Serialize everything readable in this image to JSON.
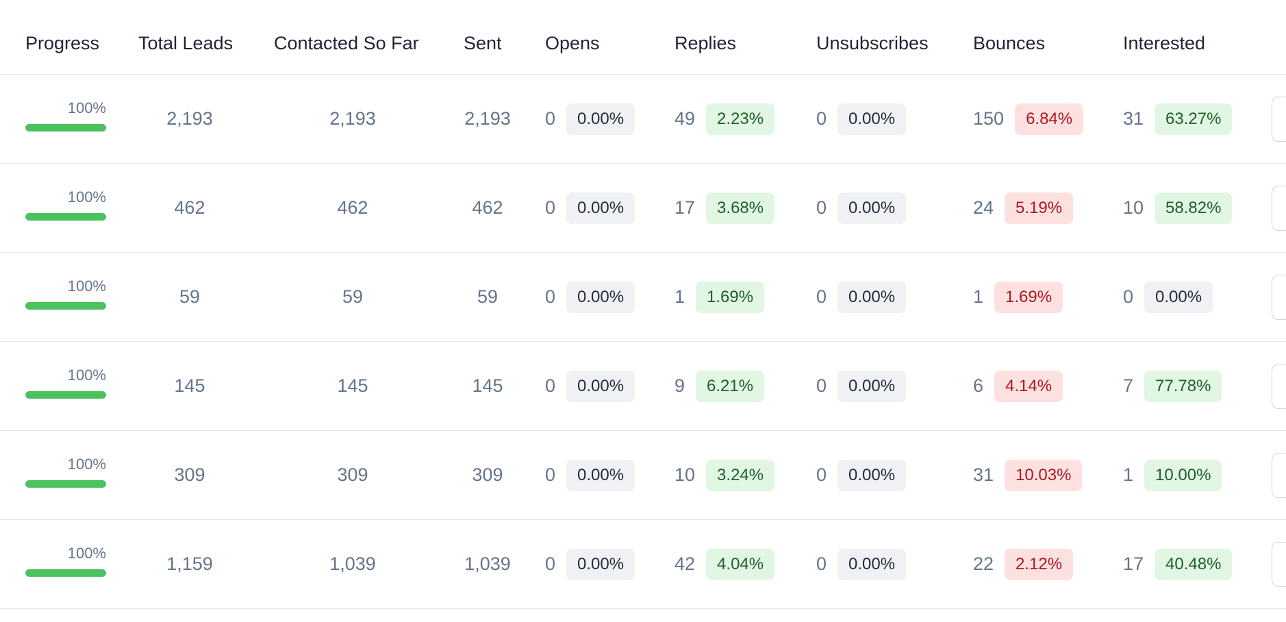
{
  "headers": {
    "progress": "Progress",
    "total_leads": "Total Leads",
    "contacted": "Contacted So Far",
    "sent": "Sent",
    "opens": "Opens",
    "replies": "Replies",
    "unsubscribes": "Unsubscribes",
    "bounces": "Bounces",
    "interested": "Interested"
  },
  "colors": {
    "progress_bar": "#4cc25f",
    "badge_neutral_bg": "#f0f1f5",
    "badge_positive_bg": "#e1f6e3",
    "badge_negative_bg": "#fde1e1"
  },
  "rows": [
    {
      "progress": 1.0,
      "progress_label": "100%",
      "total_leads": "2,193",
      "contacted": "2,193",
      "sent": "2,193",
      "opens": {
        "count": "0",
        "rate": "0.00%",
        "tone": "gray"
      },
      "replies": {
        "count": "49",
        "rate": "2.23%",
        "tone": "green"
      },
      "unsubscribes": {
        "count": "0",
        "rate": "0.00%",
        "tone": "gray"
      },
      "bounces": {
        "count": "150",
        "rate": "6.84%",
        "tone": "red"
      },
      "interested": {
        "count": "31",
        "rate": "63.27%",
        "tone": "green"
      }
    },
    {
      "progress": 1.0,
      "progress_label": "100%",
      "total_leads": "462",
      "contacted": "462",
      "sent": "462",
      "opens": {
        "count": "0",
        "rate": "0.00%",
        "tone": "gray"
      },
      "replies": {
        "count": "17",
        "rate": "3.68%",
        "tone": "green"
      },
      "unsubscribes": {
        "count": "0",
        "rate": "0.00%",
        "tone": "gray"
      },
      "bounces": {
        "count": "24",
        "rate": "5.19%",
        "tone": "red"
      },
      "interested": {
        "count": "10",
        "rate": "58.82%",
        "tone": "green"
      }
    },
    {
      "progress": 1.0,
      "progress_label": "100%",
      "total_leads": "59",
      "contacted": "59",
      "sent": "59",
      "opens": {
        "count": "0",
        "rate": "0.00%",
        "tone": "gray"
      },
      "replies": {
        "count": "1",
        "rate": "1.69%",
        "tone": "green"
      },
      "unsubscribes": {
        "count": "0",
        "rate": "0.00%",
        "tone": "gray"
      },
      "bounces": {
        "count": "1",
        "rate": "1.69%",
        "tone": "red"
      },
      "interested": {
        "count": "0",
        "rate": "0.00%",
        "tone": "gray"
      }
    },
    {
      "progress": 1.0,
      "progress_label": "100%",
      "total_leads": "145",
      "contacted": "145",
      "sent": "145",
      "opens": {
        "count": "0",
        "rate": "0.00%",
        "tone": "gray"
      },
      "replies": {
        "count": "9",
        "rate": "6.21%",
        "tone": "green"
      },
      "unsubscribes": {
        "count": "0",
        "rate": "0.00%",
        "tone": "gray"
      },
      "bounces": {
        "count": "6",
        "rate": "4.14%",
        "tone": "red"
      },
      "interested": {
        "count": "7",
        "rate": "77.78%",
        "tone": "green"
      }
    },
    {
      "progress": 1.0,
      "progress_label": "100%",
      "total_leads": "309",
      "contacted": "309",
      "sent": "309",
      "opens": {
        "count": "0",
        "rate": "0.00%",
        "tone": "gray"
      },
      "replies": {
        "count": "10",
        "rate": "3.24%",
        "tone": "green"
      },
      "unsubscribes": {
        "count": "0",
        "rate": "0.00%",
        "tone": "gray"
      },
      "bounces": {
        "count": "31",
        "rate": "10.03%",
        "tone": "red"
      },
      "interested": {
        "count": "1",
        "rate": "10.00%",
        "tone": "green"
      }
    },
    {
      "progress": 1.0,
      "progress_label": "100%",
      "total_leads": "1,159",
      "contacted": "1,039",
      "sent": "1,039",
      "opens": {
        "count": "0",
        "rate": "0.00%",
        "tone": "gray"
      },
      "replies": {
        "count": "42",
        "rate": "4.04%",
        "tone": "green"
      },
      "unsubscribes": {
        "count": "0",
        "rate": "0.00%",
        "tone": "gray"
      },
      "bounces": {
        "count": "22",
        "rate": "2.12%",
        "tone": "red"
      },
      "interested": {
        "count": "17",
        "rate": "40.48%",
        "tone": "green"
      }
    }
  ]
}
